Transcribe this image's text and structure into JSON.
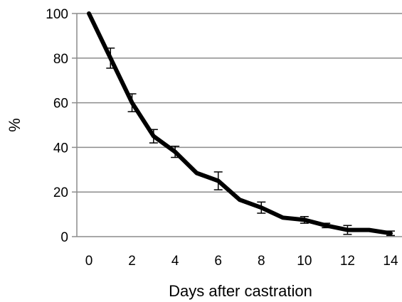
{
  "chart_data": {
    "type": "line",
    "xlabel": "Days after castration",
    "ylabel": "%",
    "xlim": [
      0,
      14
    ],
    "ylim": [
      0,
      100
    ],
    "x_ticks": [
      0,
      2,
      4,
      6,
      8,
      10,
      12,
      14
    ],
    "y_ticks": [
      0,
      20,
      40,
      60,
      80,
      100
    ],
    "grid": "horizontal",
    "legend": "none",
    "series": [
      {
        "color": "#000000",
        "points": [
          {
            "x": 0,
            "y": 100
          },
          {
            "x": 1,
            "y": 80,
            "err": 4.5
          },
          {
            "x": 2,
            "y": 60,
            "err": 4
          },
          {
            "x": 3,
            "y": 45,
            "err": 3
          },
          {
            "x": 4,
            "y": 38,
            "err": 2.5
          },
          {
            "x": 5,
            "y": 28.5
          },
          {
            "x": 6,
            "y": 25,
            "err": 4
          },
          {
            "x": 7,
            "y": 16.5
          },
          {
            "x": 8,
            "y": 13,
            "err": 2.5
          },
          {
            "x": 9,
            "y": 8.5
          },
          {
            "x": 10,
            "y": 7.5,
            "err": 1.5
          },
          {
            "x": 11,
            "y": 5,
            "err": 1
          },
          {
            "x": 12,
            "y": 3,
            "err": 2
          },
          {
            "x": 13,
            "y": 3
          },
          {
            "x": 14,
            "y": 1.5,
            "err": 1
          }
        ]
      }
    ]
  }
}
